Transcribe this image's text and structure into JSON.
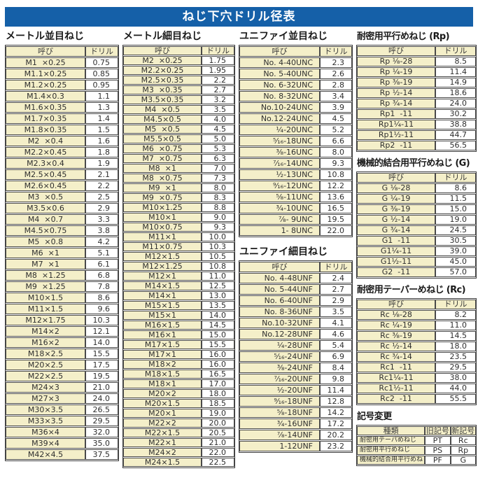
{
  "title": "ねじ下穴ドリル径表",
  "col_headers": {
    "name": "呼び",
    "drill": "ドリル"
  },
  "sections": {
    "metric_coarse": {
      "title": "メートル並目ねじ",
      "rows": [
        [
          "M1  ×0.25",
          "0.75"
        ],
        [
          "M1.1×0.25",
          "0.85"
        ],
        [
          "M1.2×0.25",
          "0.95"
        ],
        [
          "M1.4×0.3",
          "1.1"
        ],
        [
          "M1.6×0.35",
          "1.3"
        ],
        [
          "M1.7×0.35",
          "1.4"
        ],
        [
          "M1.8×0.35",
          "1.5"
        ],
        [
          "M2  ×0.4",
          "1.6"
        ],
        [
          "M2.2×0.45",
          "1.8"
        ],
        [
          "M2.3×0.4",
          "1.9"
        ],
        [
          "M2.5×0.45",
          "2.1"
        ],
        [
          "M2.6×0.45",
          "2.2"
        ],
        [
          "M3  ×0.5",
          "2.5"
        ],
        [
          "M3.5×0.6",
          "2.9"
        ],
        [
          "M4  ×0.7",
          "3.3"
        ],
        [
          "M4.5×0.75",
          "3.8"
        ],
        [
          "M5  ×0.8",
          "4.2"
        ],
        [
          "M6  ×1",
          "5.1"
        ],
        [
          "M7  ×1",
          "6.1"
        ],
        [
          "M8  ×1.25",
          "6.8"
        ],
        [
          "M9  ×1.25",
          "7.8"
        ],
        [
          "M10×1.5",
          "8.6"
        ],
        [
          "M11×1.5",
          "9.6"
        ],
        [
          "M12×1.75",
          "10.3"
        ],
        [
          "M14×2",
          "12.1"
        ],
        [
          "M16×2",
          "14.0"
        ],
        [
          "M18×2.5",
          "15.5"
        ],
        [
          "M20×2.5",
          "17.5"
        ],
        [
          "M22×2.5",
          "19.5"
        ],
        [
          "M24×3",
          "21.0"
        ],
        [
          "M27×3",
          "24.0"
        ],
        [
          "M30×3.5",
          "26.5"
        ],
        [
          "M33×3.5",
          "29.5"
        ],
        [
          "M36×4",
          "32.0"
        ],
        [
          "M39×4",
          "35.0"
        ],
        [
          "M42×4.5",
          "37.5"
        ]
      ]
    },
    "metric_fine": {
      "title": "メートル細目ねじ",
      "rows": [
        [
          "M2  ×0.25",
          "1.75"
        ],
        [
          "M2.2×0.25",
          "1.95"
        ],
        [
          "M2.5×0.35",
          "2.2"
        ],
        [
          "M3  ×0.35",
          "2.7"
        ],
        [
          "M3.5×0.35",
          "3.2"
        ],
        [
          "M4  ×0.5",
          "3.5"
        ],
        [
          "M4.5×0.5",
          "4.0"
        ],
        [
          "M5  ×0.5",
          "4.5"
        ],
        [
          "M5.5×0.5",
          "5.0"
        ],
        [
          "M6  ×0.75",
          "5.3"
        ],
        [
          "M7  ×0.75",
          "6.3"
        ],
        [
          "M8  ×1",
          "7.0"
        ],
        [
          "M8  ×0.75",
          "7.3"
        ],
        [
          "M9  ×1",
          "8.0"
        ],
        [
          "M9  ×0.75",
          "8.3"
        ],
        [
          "M10×1.25",
          "8.8"
        ],
        [
          "M10×1",
          "9.0"
        ],
        [
          "M10×0.75",
          "9.3"
        ],
        [
          "M11×1",
          "10.0"
        ],
        [
          "M11×0.75",
          "10.3"
        ],
        [
          "M12×1.5",
          "10.5"
        ],
        [
          "M12×1.25",
          "10.8"
        ],
        [
          "M12×1",
          "11.0"
        ],
        [
          "M14×1.5",
          "12.5"
        ],
        [
          "M14×1",
          "13.0"
        ],
        [
          "M15×1.5",
          "13.5"
        ],
        [
          "M15×1",
          "14.0"
        ],
        [
          "M16×1.5",
          "14.5"
        ],
        [
          "M16×1",
          "15.0"
        ],
        [
          "M17×1.5",
          "15.5"
        ],
        [
          "M17×1",
          "16.0"
        ],
        [
          "M18×2",
          "16.0"
        ],
        [
          "M18×1.5",
          "16.5"
        ],
        [
          "M18×1",
          "17.0"
        ],
        [
          "M20×2",
          "18.0"
        ],
        [
          "M20×1.5",
          "18.5"
        ],
        [
          "M20×1",
          "19.0"
        ],
        [
          "M22×2",
          "20.0"
        ],
        [
          "M22×1.5",
          "20.5"
        ],
        [
          "M22×1",
          "21.0"
        ],
        [
          "M24×2",
          "22.0"
        ],
        [
          "M24×1.5",
          "22.5"
        ]
      ]
    },
    "unified_coarse": {
      "title": "ユニファイ並目ねじ",
      "rows": [
        [
          "No. 4-40UNC",
          "2.3"
        ],
        [
          "No. 5-40UNC",
          "2.6"
        ],
        [
          "No. 6-32UNC",
          "2.8"
        ],
        [
          "No. 8-32UNC",
          "3.4"
        ],
        [
          "No.10-24UNC",
          "3.9"
        ],
        [
          "No.12-24UNC",
          "4.5"
        ],
        [
          "¹⁄₄-20UNC",
          "5.2"
        ],
        [
          "⁵⁄₁₆-18UNC",
          "6.6"
        ],
        [
          "³⁄₈-16UNC",
          "8.0"
        ],
        [
          "⁷⁄₁₆-14UNC",
          "9.3"
        ],
        [
          "¹⁄₂-13UNC",
          "10.8"
        ],
        [
          "⁹⁄₁₆-12UNC",
          "12.2"
        ],
        [
          "⁵⁄₈-11UNC",
          "13.6"
        ],
        [
          "³⁄₄-10UNC",
          "16.5"
        ],
        [
          "⁷⁄₈- 9UNC",
          "19.5"
        ],
        [
          "1- 8UNC",
          "22.0"
        ]
      ]
    },
    "unified_fine": {
      "title": "ユニファイ細目ねじ",
      "rows": [
        [
          "No. 4-48UNF",
          "2.4"
        ],
        [
          "No. 5-44UNF",
          "2.7"
        ],
        [
          "No. 6-40UNF",
          "2.9"
        ],
        [
          "No. 8-36UNF",
          "3.5"
        ],
        [
          "No.10-32UNF",
          "4.1"
        ],
        [
          "No.12-28UNF",
          "4.6"
        ],
        [
          "¹⁄₄-28UNF",
          "5.4"
        ],
        [
          "⁵⁄₁₆-24UNF",
          "6.9"
        ],
        [
          "³⁄₈-24UNF",
          "8.4"
        ],
        [
          "⁷⁄₁₆-20UNF",
          "9.8"
        ],
        [
          "¹⁄₂-20UNF",
          "11.4"
        ],
        [
          "⁹⁄₁₆-18UNF",
          "12.8"
        ],
        [
          "⁵⁄₈-18UNF",
          "14.2"
        ],
        [
          "³⁄₄-16UNF",
          "17.2"
        ],
        [
          "⁷⁄₈-14UNF",
          "20.2"
        ],
        [
          "1-12UNF",
          "23.2"
        ]
      ]
    },
    "rp": {
      "title": "耐密用平行めねじ (Rp)",
      "rows": [
        [
          "Rp ¹⁄₈-28",
          "8.5"
        ],
        [
          "Rp ¹⁄₄-19",
          "11.4"
        ],
        [
          "Rp ³⁄₈-19",
          "14.9"
        ],
        [
          "Rp ¹⁄₂-14",
          "18.6"
        ],
        [
          "Rp ³⁄₄-14",
          "24.0"
        ],
        [
          "Rp1  -11",
          "30.2"
        ],
        [
          "Rp1¹⁄₄-11",
          "38.8"
        ],
        [
          "Rp1¹⁄₂-11",
          "44.7"
        ],
        [
          "Rp2  -11",
          "56.5"
        ]
      ]
    },
    "g": {
      "title": "機械的結合用平行めねじ (G)",
      "rows": [
        [
          "G ¹⁄₈-28",
          "8.6"
        ],
        [
          "G ¹⁄₄-19",
          "11.5"
        ],
        [
          "G ³⁄₈-19",
          "15.0"
        ],
        [
          "G ¹⁄₂-14",
          "19.0"
        ],
        [
          "G ³⁄₄-14",
          "24.5"
        ],
        [
          "G1  -11",
          "30.5"
        ],
        [
          "G1¹⁄₄-11",
          "39.0"
        ],
        [
          "G1¹⁄₂-11",
          "45.0"
        ],
        [
          "G2  -11",
          "57.0"
        ]
      ]
    },
    "rc": {
      "title": "耐密用テーパーめねじ (Rc)",
      "rows": [
        [
          "Rc ¹⁄₈-28",
          "8.2"
        ],
        [
          "Rc ¹⁄₄-19",
          "11.0"
        ],
        [
          "Rc ³⁄₈-19",
          "14.5"
        ],
        [
          "Rc ¹⁄₂-14",
          "18.0"
        ],
        [
          "Rc ³⁄₄-14",
          "23.5"
        ],
        [
          "Rc1  -11",
          "29.5"
        ],
        [
          "Rc1¹⁄₄-11",
          "38.0"
        ],
        [
          "Rc1¹⁄₂-11",
          "44.0"
        ],
        [
          "Rc2  -11",
          "55.5"
        ]
      ]
    },
    "symbol_change": {
      "title": "記号変更",
      "headers": [
        "種類",
        "旧記号",
        "新記号"
      ],
      "rows": [
        [
          "耐密用テーパめねじ",
          "PT",
          "Rc"
        ],
        [
          "耐密用平行めねじ",
          "PS",
          "Rp"
        ],
        [
          "機械的結合用平行めねじ",
          "PF",
          "G"
        ]
      ]
    }
  },
  "colors": {
    "banner_blue": "#1560a8",
    "cell_cream": "#f4efc9",
    "border": "#4a4a4a"
  }
}
